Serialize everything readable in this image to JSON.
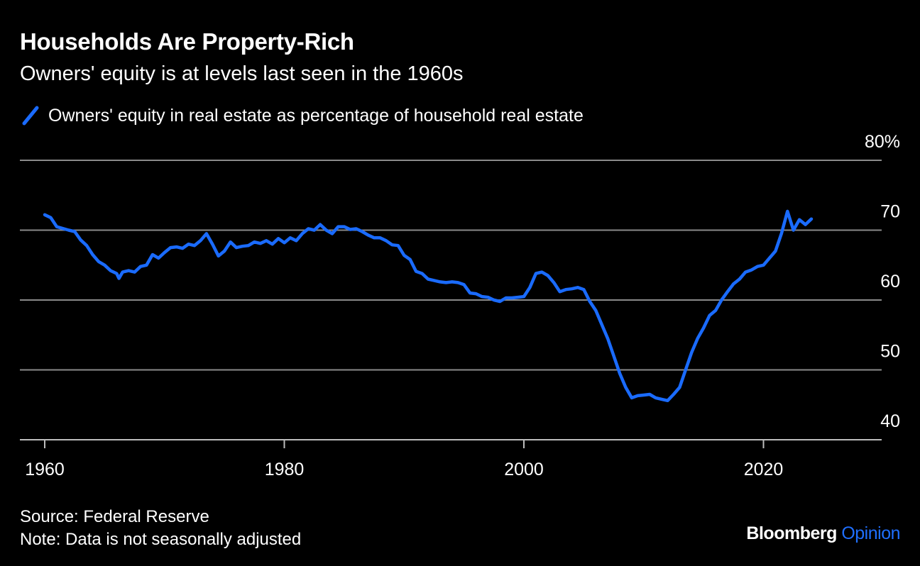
{
  "header": {
    "title": "Households Are Property-Rich",
    "subtitle": "Owners' equity is at levels last seen in the 1960s"
  },
  "footer": {
    "source": "Source: Federal Reserve",
    "note": "Note: Data is not seasonally adjusted",
    "brand_primary": "Bloomberg",
    "brand_secondary": "Opinion"
  },
  "colors": {
    "line": "#1a6bff",
    "grid": "#8a8a8a",
    "background": "#000000",
    "brand_accent": "#1f6fff"
  },
  "chart_data": {
    "type": "line",
    "title": "Households Are Property-Rich",
    "subtitle": "Owners' equity is at levels last seen in the 1960s",
    "xlabel": "",
    "ylabel": "",
    "xlim": [
      1960,
      2030
    ],
    "ylim": [
      40,
      80
    ],
    "x_ticks": [
      1960,
      1980,
      2000,
      2020
    ],
    "x_tick_labels": [
      "1960",
      "1980",
      "2000",
      "2020"
    ],
    "y_ticks": [
      40,
      50,
      60,
      70,
      80
    ],
    "y_tick_labels": [
      "40",
      "50",
      "60",
      "70",
      "80%"
    ],
    "grid": "horizontal",
    "legend_position": "top-left",
    "series": [
      {
        "name": "Owners' equity in real estate as percentage of household real estate",
        "color": "#1a6bff",
        "x": [
          1960,
          1960.5,
          1961,
          1962,
          1962.5,
          1963,
          1963.5,
          1964,
          1964.5,
          1965,
          1965.5,
          1966,
          1966.2,
          1966.5,
          1967,
          1967.5,
          1968,
          1968.5,
          1969,
          1969.5,
          1970,
          1970.5,
          1971,
          1971.5,
          1972,
          1972.5,
          1973,
          1973.5,
          1974,
          1974.5,
          1975,
          1975.5,
          1976,
          1976.5,
          1977,
          1977.5,
          1978,
          1978.5,
          1979,
          1979.5,
          1980,
          1980.5,
          1981,
          1981.5,
          1982,
          1982.5,
          1983,
          1983.5,
          1984,
          1984.5,
          1985,
          1985.5,
          1986,
          1986.5,
          1987,
          1987.5,
          1988,
          1988.5,
          1989,
          1989.5,
          1990,
          1990.5,
          1991,
          1991.5,
          1992,
          1992.5,
          1993,
          1993.5,
          1994,
          1994.5,
          1995,
          1995.5,
          1996,
          1996.5,
          1997,
          1997.5,
          1998,
          1998.5,
          1999,
          1999.5,
          2000,
          2000.5,
          2001,
          2001.5,
          2002,
          2002.5,
          2003,
          2003.5,
          2004,
          2004.5,
          2005,
          2005.5,
          2006,
          2006.5,
          2007,
          2007.5,
          2008,
          2008.5,
          2009,
          2009.5,
          2010,
          2010.5,
          2011,
          2011.5,
          2012,
          2012.5,
          2013,
          2013.5,
          2014,
          2014.5,
          2015,
          2015.5,
          2016,
          2016.5,
          2017,
          2017.5,
          2018,
          2018.5,
          2019,
          2019.5,
          2020,
          2020.5,
          2021,
          2021.5,
          2022,
          2022.5,
          2023,
          2023.5,
          2024
        ],
        "values": [
          72.2,
          71.8,
          70.5,
          70.0,
          69.8,
          68.6,
          67.8,
          66.5,
          65.5,
          65.0,
          64.2,
          63.8,
          63.1,
          64.0,
          64.2,
          64.0,
          64.8,
          65.0,
          66.5,
          66.0,
          66.8,
          67.5,
          67.6,
          67.4,
          68.0,
          67.8,
          68.5,
          69.5,
          68.0,
          66.3,
          67.0,
          68.3,
          67.5,
          67.7,
          67.8,
          68.3,
          68.1,
          68.5,
          68.0,
          68.8,
          68.2,
          68.9,
          68.5,
          69.5,
          70.2,
          70.0,
          70.8,
          70.0,
          69.5,
          70.5,
          70.5,
          70.1,
          70.2,
          69.8,
          69.3,
          68.9,
          68.9,
          68.5,
          67.9,
          67.8,
          66.4,
          65.8,
          64.1,
          63.8,
          63.0,
          62.8,
          62.6,
          62.5,
          62.6,
          62.5,
          62.2,
          61.0,
          60.9,
          60.5,
          60.4,
          60.0,
          59.8,
          60.3,
          60.3,
          60.4,
          60.5,
          61.8,
          63.8,
          64.0,
          63.5,
          62.5,
          61.2,
          61.5,
          61.6,
          61.8,
          61.5,
          59.8,
          58.5,
          56.5,
          54.5,
          52.0,
          49.5,
          47.5,
          46.0,
          46.3,
          46.4,
          46.5,
          46.0,
          45.8,
          45.6,
          46.5,
          47.5,
          50.0,
          52.5,
          54.5,
          56.0,
          57.8,
          58.5,
          60.0,
          61.2,
          62.3,
          63.0,
          64.0,
          64.3,
          64.8,
          65.0,
          66.0,
          67.0,
          69.5,
          72.7,
          70.0,
          71.5,
          70.8,
          71.6
        ]
      }
    ]
  }
}
